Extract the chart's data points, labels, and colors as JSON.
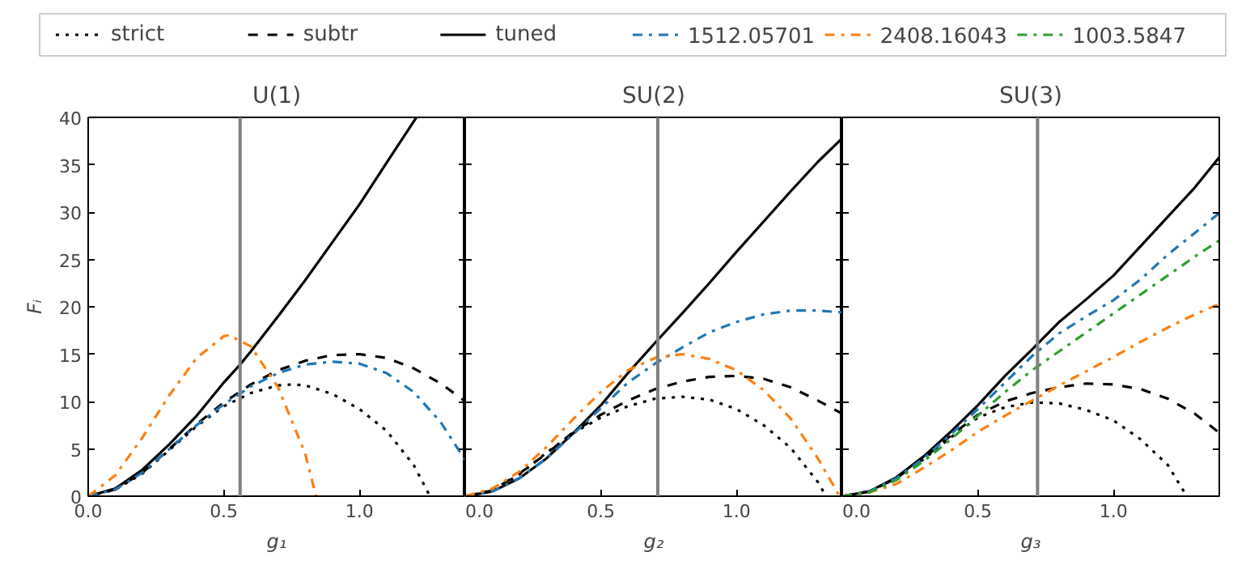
{
  "chart_data": [
    {
      "type": "line",
      "title": "U(1)",
      "xlabel": "g₁",
      "ylabel": "Fᵢ",
      "xlim": [
        0,
        1.39
      ],
      "ylim": [
        0,
        40
      ],
      "xticks": [
        {
          "value": 0,
          "label": "0.0"
        },
        {
          "value": 0.5,
          "label": "0.5"
        },
        {
          "value": 1,
          "label": "1.0"
        }
      ],
      "yticks": [
        0,
        5,
        10,
        15,
        20,
        25,
        30,
        35,
        40
      ],
      "grid": false,
      "legend": "top",
      "ref_lines": [
        {
          "axis": "x",
          "value": 0.56,
          "color": "#808080"
        }
      ],
      "series": [
        {
          "name": "strict",
          "color": "#000000",
          "line_style": "dotted",
          "x": [
            0,
            0.1,
            0.2,
            0.3,
            0.4,
            0.5,
            0.6,
            0.7,
            0.75,
            0.8,
            0.9,
            1.0,
            1.1,
            1.2,
            1.26
          ],
          "values": [
            0,
            0.7,
            2.4,
            4.9,
            7.4,
            9.5,
            10.9,
            11.7,
            11.8,
            11.7,
            10.8,
            9.2,
            6.9,
            3.3,
            0
          ]
        },
        {
          "name": "subtr",
          "color": "#000000",
          "line_style": "dashed",
          "x": [
            0,
            0.1,
            0.2,
            0.3,
            0.4,
            0.5,
            0.6,
            0.7,
            0.8,
            0.9,
            1.0,
            1.1,
            1.2,
            1.3,
            1.39
          ],
          "values": [
            0,
            0.7,
            2.5,
            5.0,
            7.6,
            9.9,
            11.8,
            13.3,
            14.3,
            14.9,
            15.0,
            14.6,
            13.5,
            11.9,
            10.0
          ]
        },
        {
          "name": "tuned",
          "color": "#000000",
          "line_style": "solid",
          "x": [
            0,
            0.1,
            0.2,
            0.3,
            0.4,
            0.5,
            0.56,
            0.6,
            0.7,
            0.8,
            0.9,
            1.0,
            1.1,
            1.21
          ],
          "values": [
            0,
            0.8,
            2.8,
            5.5,
            8.5,
            12.0,
            13.9,
            15.3,
            19.0,
            22.8,
            26.8,
            30.8,
            35.2,
            40
          ]
        },
        {
          "name": "1512.05701",
          "color": "#1f77b4",
          "line_style": "dashdot",
          "x": [
            0,
            0.1,
            0.2,
            0.3,
            0.4,
            0.5,
            0.6,
            0.7,
            0.8,
            0.9,
            1.0,
            1.1,
            1.2,
            1.3,
            1.39
          ],
          "values": [
            0,
            0.7,
            2.5,
            5.0,
            7.5,
            9.7,
            11.6,
            13.0,
            13.9,
            14.2,
            14.0,
            13.0,
            11.0,
            7.8,
            3.8
          ]
        },
        {
          "name": "2408.16043",
          "color": "#ff7f0e",
          "line_style": "dashdot",
          "x": [
            0,
            0.1,
            0.2,
            0.3,
            0.4,
            0.5,
            0.52,
            0.6,
            0.7,
            0.8,
            0.84
          ],
          "values": [
            0,
            2.2,
            6.2,
            10.7,
            14.6,
            16.9,
            17.0,
            15.8,
            11.5,
            4.5,
            0
          ]
        }
      ]
    },
    {
      "type": "line",
      "title": "SU(2)",
      "xlabel": "g₂",
      "xlim": [
        0,
        1.39
      ],
      "ylim": [
        0,
        40
      ],
      "xticks": [
        {
          "value": 0,
          "label": "0.0"
        },
        {
          "value": 0.5,
          "label": "0.5"
        },
        {
          "value": 1,
          "label": "1.0"
        }
      ],
      "yticks": [
        0,
        5,
        10,
        15,
        20,
        25,
        30,
        35,
        40
      ],
      "tick_labels": "x",
      "grid": false,
      "ref_lines": [
        {
          "axis": "x",
          "value": 0.71,
          "color": "#808080"
        }
      ],
      "series": [
        {
          "name": "strict",
          "color": "#000000",
          "line_style": "dotted",
          "x": [
            0,
            0.1,
            0.2,
            0.3,
            0.4,
            0.5,
            0.6,
            0.7,
            0.8,
            0.9,
            1.0,
            1.1,
            1.2,
            1.3,
            1.33
          ],
          "values": [
            0,
            0.6,
            2.3,
            4.6,
            6.7,
            8.3,
            9.5,
            10.3,
            10.5,
            10.2,
            9.2,
            7.5,
            5.1,
            1.5,
            0
          ]
        },
        {
          "name": "subtr",
          "color": "#000000",
          "line_style": "dashed",
          "x": [
            0,
            0.1,
            0.2,
            0.3,
            0.4,
            0.5,
            0.6,
            0.7,
            0.8,
            0.9,
            1.0,
            1.1,
            1.2,
            1.3,
            1.39
          ],
          "values": [
            0,
            0.6,
            2.4,
            4.5,
            6.8,
            8.6,
            10.1,
            11.3,
            12.1,
            12.6,
            12.7,
            12.4,
            11.5,
            10.1,
            8.7
          ]
        },
        {
          "name": "tuned",
          "color": "#000000",
          "line_style": "solid",
          "x": [
            0,
            0.1,
            0.2,
            0.3,
            0.4,
            0.5,
            0.6,
            0.7,
            0.8,
            0.9,
            1.0,
            1.1,
            1.2,
            1.3,
            1.39
          ],
          "values": [
            0,
            0.5,
            1.9,
            4.0,
            6.7,
            9.6,
            13.0,
            16.2,
            19.3,
            22.5,
            25.8,
            29.0,
            32.2,
            35.3,
            37.8
          ]
        },
        {
          "name": "1512.05701",
          "color": "#1f77b4",
          "line_style": "dashdot",
          "x": [
            0,
            0.1,
            0.2,
            0.3,
            0.4,
            0.5,
            0.6,
            0.7,
            0.8,
            0.9,
            1.0,
            1.1,
            1.2,
            1.3,
            1.39
          ],
          "values": [
            0,
            0.5,
            1.9,
            4.0,
            6.6,
            9.3,
            12.0,
            14.0,
            15.7,
            17.3,
            18.4,
            19.2,
            19.6,
            19.6,
            19.4
          ]
        },
        {
          "name": "2408.16043",
          "color": "#ff7f0e",
          "line_style": "dashdot",
          "x": [
            0,
            0.1,
            0.2,
            0.3,
            0.4,
            0.5,
            0.6,
            0.7,
            0.8,
            0.9,
            1.0,
            1.1,
            1.2,
            1.3,
            1.38
          ],
          "values": [
            0,
            0.8,
            2.6,
            5.2,
            8.2,
            11.0,
            13.3,
            14.6,
            15.0,
            14.5,
            13.3,
            11.2,
            8.2,
            4.0,
            0
          ]
        }
      ]
    },
    {
      "type": "line",
      "title": "SU(3)",
      "xlabel": "g₃",
      "xlim": [
        0,
        1.39
      ],
      "ylim": [
        0,
        40
      ],
      "xticks": [
        {
          "value": 0,
          "label": "0.0"
        },
        {
          "value": 0.5,
          "label": "0.5"
        },
        {
          "value": 1,
          "label": "1.0"
        }
      ],
      "yticks": [
        0,
        5,
        10,
        15,
        20,
        25,
        30,
        35,
        40
      ],
      "tick_labels": "x",
      "grid": false,
      "ref_lines": [
        {
          "axis": "x",
          "value": 0.72,
          "color": "#808080"
        }
      ],
      "series": [
        {
          "name": "strict",
          "color": "#000000",
          "line_style": "dotted",
          "x": [
            0,
            0.1,
            0.2,
            0.3,
            0.4,
            0.5,
            0.6,
            0.7,
            0.8,
            0.9,
            1.0,
            1.1,
            1.2,
            1.27
          ],
          "values": [
            0,
            0.5,
            1.9,
            3.9,
            6.2,
            8.3,
            9.4,
            9.9,
            9.8,
            9.1,
            8.0,
            6.0,
            3.3,
            0
          ]
        },
        {
          "name": "subtr",
          "color": "#000000",
          "line_style": "dashed",
          "x": [
            0,
            0.1,
            0.2,
            0.3,
            0.4,
            0.5,
            0.6,
            0.7,
            0.8,
            0.9,
            1.0,
            1.1,
            1.2,
            1.3,
            1.39
          ],
          "values": [
            0,
            0.5,
            1.9,
            4.0,
            6.4,
            8.6,
            10.0,
            10.9,
            11.5,
            11.9,
            11.8,
            11.3,
            10.3,
            8.7,
            6.7
          ]
        },
        {
          "name": "tuned",
          "color": "#000000",
          "line_style": "solid",
          "x": [
            0,
            0.1,
            0.2,
            0.3,
            0.4,
            0.5,
            0.6,
            0.7,
            0.8,
            0.9,
            1.0,
            1.1,
            1.2,
            1.3,
            1.39
          ],
          "values": [
            0,
            0.5,
            2.0,
            4.2,
            6.8,
            9.6,
            12.7,
            15.5,
            18.4,
            20.8,
            23.3,
            26.4,
            29.5,
            32.6,
            35.8
          ]
        },
        {
          "name": "1512.05701",
          "color": "#1f77b4",
          "line_style": "dashdot",
          "x": [
            0,
            0.1,
            0.2,
            0.3,
            0.4,
            0.5,
            0.6,
            0.7,
            0.8,
            0.9,
            1.0,
            1.1,
            1.2,
            1.3,
            1.39
          ],
          "values": [
            0,
            0.5,
            1.9,
            4.0,
            6.5,
            9.2,
            12.0,
            14.8,
            17.2,
            19.0,
            20.7,
            22.9,
            25.5,
            27.8,
            29.9
          ]
        },
        {
          "name": "2408.16043",
          "color": "#ff7f0e",
          "line_style": "dashdot",
          "x": [
            0,
            0.1,
            0.2,
            0.3,
            0.4,
            0.5,
            0.6,
            0.7,
            0.8,
            0.9,
            1.0,
            1.1,
            1.2,
            1.3,
            1.39
          ],
          "values": [
            0,
            0.4,
            1.3,
            3.0,
            4.8,
            6.8,
            8.5,
            10.1,
            11.7,
            13.2,
            14.7,
            16.3,
            17.8,
            19.2,
            20.3
          ]
        },
        {
          "name": "1003.5847",
          "color": "#2ca02c",
          "line_style": "dashdot",
          "x": [
            0,
            0.1,
            0.2,
            0.3,
            0.4,
            0.5,
            0.6,
            0.7,
            0.8,
            0.9,
            1.0,
            1.1,
            1.2,
            1.3,
            1.39
          ],
          "values": [
            0,
            0.4,
            1.7,
            3.7,
            6.0,
            8.5,
            11.0,
            13.3,
            15.3,
            17.3,
            19.3,
            21.3,
            23.3,
            25.3,
            27.0
          ]
        }
      ]
    }
  ]
}
